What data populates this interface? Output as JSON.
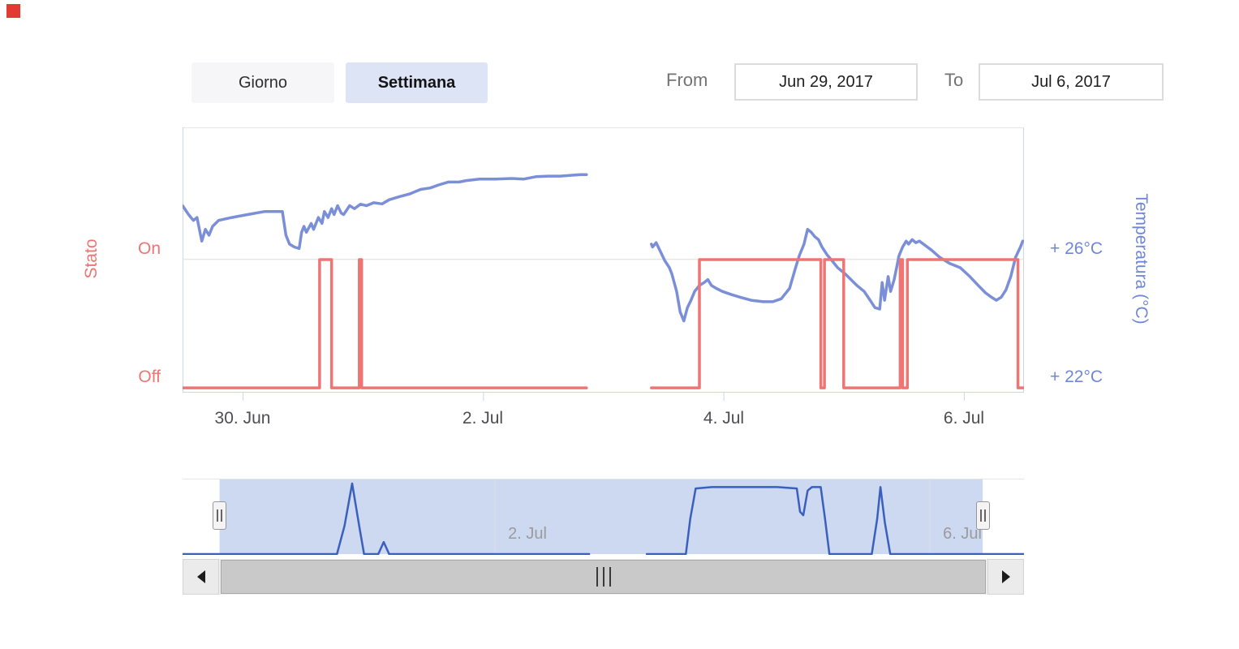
{
  "header": {
    "period_buttons": [
      {
        "label": "Giorno",
        "active": false
      },
      {
        "label": "Settimana",
        "active": true
      }
    ],
    "date_range": {
      "from_label": "From",
      "from_value": "Jun 29, 2017",
      "to_label": "To",
      "to_value": "Jul 6, 2017"
    }
  },
  "chart_data": {
    "type": "line",
    "title": "",
    "time_note": "x positions are days since Jun 29 2017 00:00 (1.0 = Jun 30 00:00)",
    "x_axis": {
      "range_days": [
        0.5,
        7.5
      ],
      "ticks": [
        {
          "pos": 1,
          "label": "30. Jun"
        },
        {
          "pos": 3,
          "label": "2. Jul"
        },
        {
          "pos": 5,
          "label": "4. Jul"
        },
        {
          "pos": 7,
          "label": "6. Jul"
        }
      ]
    },
    "y_axis_left": {
      "title": "Stato",
      "tick_labels": [
        "On",
        "Off"
      ],
      "color": "#ee7573"
    },
    "y_axis_right": {
      "title": "Temperatura (°C)",
      "range": [
        21.5,
        30.45
      ],
      "ticks": [
        {
          "value": 26,
          "label": "+ 26°C"
        },
        {
          "value": 22,
          "label": "+ 22°C"
        }
      ],
      "gridlines": [
        26
      ],
      "color": "#6e87d9"
    },
    "series": [
      {
        "name": "Temperatura",
        "unit": "°C",
        "color": "#7b8fd9",
        "stroke_width": 3.5,
        "segments": [
          [
            [
              0.5,
              27.8
            ],
            [
              0.55,
              27.5
            ],
            [
              0.59,
              27.3
            ],
            [
              0.62,
              27.4
            ],
            [
              0.66,
              26.6
            ],
            [
              0.69,
              27.0
            ],
            [
              0.72,
              26.8
            ],
            [
              0.75,
              27.1
            ],
            [
              0.8,
              27.3
            ],
            [
              0.91,
              27.4
            ],
            [
              1.04,
              27.5
            ],
            [
              1.18,
              27.6
            ],
            [
              1.33,
              27.6
            ],
            [
              1.36,
              26.8
            ],
            [
              1.39,
              26.5
            ],
            [
              1.43,
              26.4
            ],
            [
              1.47,
              26.35
            ],
            [
              1.49,
              26.9
            ],
            [
              1.51,
              27.1
            ],
            [
              1.53,
              26.9
            ],
            [
              1.57,
              27.2
            ],
            [
              1.59,
              27.0
            ],
            [
              1.63,
              27.4
            ],
            [
              1.66,
              27.2
            ],
            [
              1.68,
              27.6
            ],
            [
              1.71,
              27.4
            ],
            [
              1.74,
              27.7
            ],
            [
              1.76,
              27.5
            ],
            [
              1.79,
              27.8
            ],
            [
              1.82,
              27.55
            ],
            [
              1.84,
              27.5
            ],
            [
              1.89,
              27.8
            ],
            [
              1.93,
              27.7
            ],
            [
              1.98,
              27.85
            ],
            [
              2.03,
              27.8
            ],
            [
              2.09,
              27.9
            ],
            [
              2.16,
              27.86
            ],
            [
              2.22,
              28.0
            ],
            [
              2.3,
              28.1
            ],
            [
              2.39,
              28.2
            ],
            [
              2.48,
              28.35
            ],
            [
              2.56,
              28.4
            ],
            [
              2.63,
              28.5
            ],
            [
              2.71,
              28.6
            ],
            [
              2.8,
              28.6
            ],
            [
              2.86,
              28.65
            ],
            [
              2.97,
              28.7
            ],
            [
              3.1,
              28.7
            ],
            [
              3.24,
              28.72
            ],
            [
              3.34,
              28.7
            ],
            [
              3.44,
              28.78
            ],
            [
              3.54,
              28.8
            ],
            [
              3.64,
              28.8
            ],
            [
              3.74,
              28.83
            ],
            [
              3.81,
              28.85
            ],
            [
              3.86,
              28.85
            ]
          ],
          [
            [
              4.4,
              26.5
            ],
            [
              4.41,
              26.4
            ],
            [
              4.44,
              26.55
            ],
            [
              4.47,
              26.3
            ],
            [
              4.51,
              25.95
            ],
            [
              4.55,
              25.7
            ],
            [
              4.57,
              25.5
            ],
            [
              4.61,
              24.9
            ],
            [
              4.64,
              24.2
            ],
            [
              4.67,
              23.9
            ],
            [
              4.7,
              24.35
            ],
            [
              4.73,
              24.6
            ],
            [
              4.76,
              24.9
            ],
            [
              4.8,
              25.1
            ],
            [
              4.84,
              25.2
            ],
            [
              4.87,
              25.3
            ],
            [
              4.9,
              25.1
            ],
            [
              4.94,
              25.0
            ],
            [
              4.99,
              24.9
            ],
            [
              5.06,
              24.8
            ],
            [
              5.14,
              24.7
            ],
            [
              5.23,
              24.6
            ],
            [
              5.33,
              24.55
            ],
            [
              5.41,
              24.55
            ],
            [
              5.48,
              24.65
            ],
            [
              5.55,
              25.0
            ],
            [
              5.6,
              25.7
            ],
            [
              5.63,
              26.1
            ],
            [
              5.67,
              26.5
            ],
            [
              5.7,
              27.0
            ],
            [
              5.73,
              26.9
            ],
            [
              5.76,
              26.75
            ],
            [
              5.79,
              26.65
            ],
            [
              5.82,
              26.4
            ],
            [
              5.86,
              26.15
            ],
            [
              5.9,
              25.95
            ],
            [
              5.95,
              25.7
            ],
            [
              6.01,
              25.5
            ],
            [
              6.06,
              25.3
            ],
            [
              6.11,
              25.1
            ],
            [
              6.17,
              24.9
            ],
            [
              6.22,
              24.6
            ],
            [
              6.26,
              24.35
            ],
            [
              6.3,
              24.3
            ],
            [
              6.32,
              25.2
            ],
            [
              6.34,
              24.6
            ],
            [
              6.37,
              25.4
            ],
            [
              6.39,
              24.9
            ],
            [
              6.42,
              25.3
            ],
            [
              6.44,
              25.7
            ],
            [
              6.46,
              26.1
            ],
            [
              6.49,
              26.4
            ],
            [
              6.52,
              26.6
            ],
            [
              6.54,
              26.5
            ],
            [
              6.57,
              26.65
            ],
            [
              6.6,
              26.55
            ],
            [
              6.63,
              26.6
            ],
            [
              6.68,
              26.45
            ],
            [
              6.73,
              26.3
            ],
            [
              6.8,
              26.05
            ],
            [
              6.88,
              25.85
            ],
            [
              6.97,
              25.7
            ],
            [
              7.05,
              25.4
            ],
            [
              7.12,
              25.1
            ],
            [
              7.18,
              24.85
            ],
            [
              7.23,
              24.7
            ],
            [
              7.27,
              24.6
            ],
            [
              7.31,
              24.7
            ],
            [
              7.35,
              24.95
            ],
            [
              7.39,
              25.4
            ],
            [
              7.43,
              26.05
            ],
            [
              7.47,
              26.4
            ],
            [
              7.49,
              26.6
            ]
          ]
        ]
      },
      {
        "name": "Stato",
        "color": "#ee7573",
        "stroke_width": 3.5,
        "levels": {
          "on_y_frac": 0.5,
          "off_y_frac": 0.985
        },
        "on_intervals_days": [
          [
            1.64,
            1.74
          ],
          [
            1.97,
            1.99
          ],
          [
            4.8,
            5.81
          ],
          [
            5.84,
            6.0
          ],
          [
            6.47,
            6.49
          ],
          [
            6.53,
            7.45
          ]
        ],
        "segments": [
          [
            [
              0.5,
              0
            ],
            [
              1.64,
              0
            ],
            [
              1.64,
              1
            ],
            [
              1.74,
              1
            ],
            [
              1.74,
              0
            ],
            [
              1.97,
              0
            ],
            [
              1.97,
              1
            ],
            [
              1.99,
              1
            ],
            [
              1.99,
              0
            ],
            [
              3.86,
              0
            ]
          ],
          [
            [
              4.4,
              0
            ],
            [
              4.8,
              0
            ],
            [
              4.8,
              1
            ],
            [
              5.81,
              1
            ],
            [
              5.81,
              0
            ],
            [
              5.84,
              0
            ],
            [
              5.84,
              1
            ],
            [
              6.0,
              1
            ],
            [
              6.0,
              0
            ],
            [
              6.47,
              0
            ],
            [
              6.47,
              1
            ],
            [
              6.49,
              1
            ],
            [
              6.49,
              0
            ],
            [
              6.53,
              0
            ],
            [
              6.53,
              1
            ],
            [
              7.45,
              1
            ],
            [
              7.45,
              0
            ],
            [
              7.5,
              0
            ]
          ]
        ]
      }
    ],
    "data_gap_days": [
      3.86,
      4.4
    ],
    "navigator": {
      "x_range": [
        0.13,
        7.87
      ],
      "selection_days": [
        0.47,
        7.49
      ],
      "line_color": "#3a5fbc",
      "mask_color": "#cdd8f1",
      "ticks": [
        {
          "pos": 3,
          "label": "2. Jul"
        },
        {
          "pos": 7,
          "label": "6. Jul"
        }
      ],
      "segments": [
        [
          [
            0.13,
            0
          ],
          [
            1.55,
            0
          ],
          [
            1.62,
            0.4
          ],
          [
            1.69,
            1.0
          ],
          [
            1.76,
            0.35
          ],
          [
            1.8,
            0
          ],
          [
            1.93,
            0
          ],
          [
            1.98,
            0.17
          ],
          [
            2.03,
            0
          ],
          [
            3.0,
            0
          ],
          [
            3.87,
            0
          ]
        ],
        [
          [
            4.4,
            0
          ],
          [
            4.76,
            0
          ],
          [
            4.8,
            0.5
          ],
          [
            4.85,
            0.93
          ],
          [
            5.0,
            0.95
          ],
          [
            5.3,
            0.95
          ],
          [
            5.6,
            0.95
          ],
          [
            5.78,
            0.93
          ],
          [
            5.81,
            0.6
          ],
          [
            5.84,
            0.55
          ],
          [
            5.88,
            0.9
          ],
          [
            5.92,
            0.95
          ],
          [
            6.0,
            0.95
          ],
          [
            6.04,
            0.5
          ],
          [
            6.08,
            0
          ],
          [
            6.35,
            0
          ],
          [
            6.47,
            0
          ],
          [
            6.52,
            0.5
          ],
          [
            6.55,
            0.95
          ],
          [
            6.59,
            0.45
          ],
          [
            6.64,
            0
          ],
          [
            7.0,
            0
          ],
          [
            7.87,
            0
          ]
        ]
      ]
    }
  }
}
